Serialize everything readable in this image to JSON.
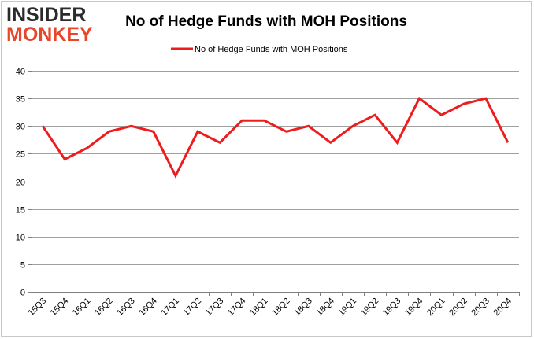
{
  "logo": {
    "line1": "INSIDER",
    "line2": "MONKEY"
  },
  "chart_data": {
    "type": "line",
    "title": "No of Hedge Funds with MOH Positions",
    "xlabel": "",
    "ylabel": "",
    "legend_position": "top-center",
    "grid": true,
    "ylim": [
      0,
      40
    ],
    "yticks": [
      0,
      5,
      10,
      15,
      20,
      25,
      30,
      35,
      40
    ],
    "categories": [
      "15Q3",
      "15Q4",
      "16Q1",
      "16Q2",
      "16Q3",
      "16Q4",
      "17Q1",
      "17Q2",
      "17Q3",
      "17Q4",
      "18Q1",
      "18Q2",
      "18Q3",
      "18Q4",
      "19Q1",
      "19Q2",
      "19Q3",
      "19Q4",
      "20Q1",
      "20Q2",
      "20Q3",
      "20Q4"
    ],
    "series": [
      {
        "name": "No of Hedge Funds with MOH Positions",
        "color": "#ee1c1c",
        "values": [
          30,
          24,
          26,
          29,
          30,
          29,
          21,
          29,
          27,
          31,
          31,
          29,
          30,
          27,
          30,
          32,
          27,
          35,
          32,
          34,
          35,
          27
        ]
      }
    ]
  }
}
